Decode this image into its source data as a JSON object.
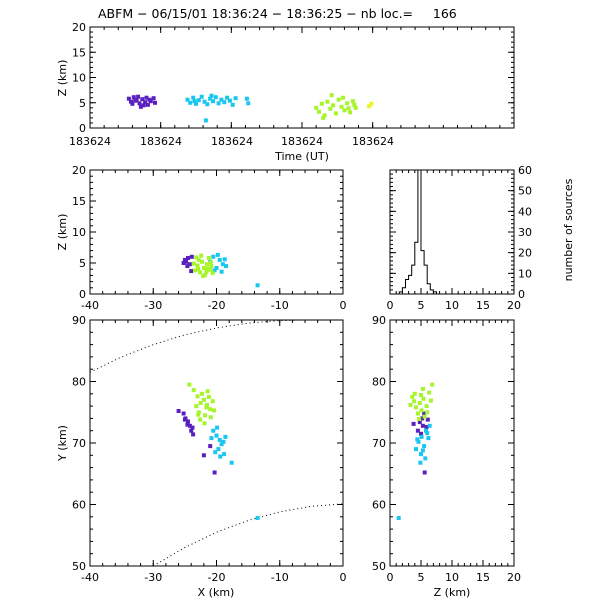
{
  "title": "ABFM − 06/15/01 18:36:24 − 18:36:25 − nb loc.=     166",
  "colors": {
    "background": "#ffffff",
    "frame": "#000000",
    "group_purple": "#5a1fbf",
    "group_blue": "#18c6f0",
    "group_green": "#a6f52a",
    "group_yellow": "#e8f520"
  },
  "chart_data": [
    {
      "type": "scatter",
      "panel": "time-height",
      "title": "ABFM − 06/15/01 18:36:24 − 18:36:25 − nb loc.=     166",
      "xlabel": "Time (UT)",
      "ylabel": "Z (km)",
      "x_tick_labels": [
        "183624",
        "183624",
        "183624",
        "183624",
        "183624"
      ],
      "ylim": [
        0,
        20
      ],
      "y_ticks": [
        0,
        5,
        10,
        15,
        20
      ],
      "series": [
        {
          "color": "#5a1fbf",
          "points": [
            [
              0.55,
              5.8
            ],
            [
              0.58,
              5.2
            ],
            [
              0.62,
              6.1
            ],
            [
              0.66,
              5.5
            ],
            [
              0.7,
              4.9
            ],
            [
              0.74,
              5.7
            ],
            [
              0.78,
              5.1
            ],
            [
              0.82,
              4.6
            ],
            [
              0.86,
              5.3
            ],
            [
              0.9,
              5.9
            ],
            [
              0.6,
              4.8
            ],
            [
              0.68,
              6.2
            ],
            [
              0.76,
              4.5
            ],
            [
              0.84,
              5.6
            ],
            [
              0.92,
              5.0
            ],
            [
              0.64,
              5.4
            ],
            [
              0.72,
              4.2
            ],
            [
              0.8,
              6.0
            ]
          ]
        },
        {
          "color": "#18c6f0",
          "points": [
            [
              1.38,
              5.6
            ],
            [
              1.42,
              5.0
            ],
            [
              1.46,
              6.0
            ],
            [
              1.5,
              4.8
            ],
            [
              1.54,
              5.5
            ],
            [
              1.58,
              6.2
            ],
            [
              1.62,
              5.2
            ],
            [
              1.66,
              4.7
            ],
            [
              1.7,
              5.8
            ],
            [
              1.74,
              5.3
            ],
            [
              1.78,
              6.1
            ],
            [
              1.82,
              4.9
            ],
            [
              1.86,
              5.6
            ],
            [
              1.9,
              5.1
            ],
            [
              1.94,
              6.0
            ],
            [
              1.98,
              5.4
            ],
            [
              2.02,
              4.6
            ],
            [
              2.06,
              5.9
            ],
            [
              1.64,
              1.5
            ],
            [
              2.22,
              5.8
            ],
            [
              2.24,
              4.9
            ],
            [
              1.48,
              5.3
            ],
            [
              1.72,
              6.4
            ]
          ]
        },
        {
          "color": "#a6f52a",
          "points": [
            [
              3.2,
              4.0
            ],
            [
              3.24,
              3.2
            ],
            [
              3.28,
              4.8
            ],
            [
              3.32,
              2.5
            ],
            [
              3.36,
              5.2
            ],
            [
              3.4,
              3.8
            ],
            [
              3.44,
              4.5
            ],
            [
              3.48,
              2.9
            ],
            [
              3.52,
              5.6
            ],
            [
              3.56,
              4.2
            ],
            [
              3.6,
              3.5
            ],
            [
              3.64,
              4.9
            ],
            [
              3.68,
              3.1
            ],
            [
              3.72,
              5.3
            ],
            [
              3.76,
              4.0
            ],
            [
              3.42,
              6.5
            ],
            [
              3.58,
              6.0
            ],
            [
              3.3,
              2.0
            ],
            [
              3.66,
              3.9
            ],
            [
              3.74,
              4.6
            ]
          ]
        },
        {
          "color": "#e8f520",
          "points": [
            [
              3.95,
              4.3
            ],
            [
              3.98,
              4.8
            ]
          ]
        }
      ]
    },
    {
      "type": "scatter",
      "panel": "x-z",
      "xlabel": "",
      "ylabel": "Z (km)",
      "xlim": [
        -40,
        0
      ],
      "x_ticks": [
        -40,
        -30,
        -20,
        -10,
        0
      ],
      "ylim": [
        0,
        20
      ],
      "y_ticks": [
        0,
        5,
        10,
        15,
        20
      ],
      "series": [
        {
          "color": "#5a1fbf",
          "points": [
            [
              -24.5,
              5.8
            ],
            [
              -24.8,
              5.2
            ],
            [
              -24.2,
              4.8
            ],
            [
              -25.0,
              5.5
            ],
            [
              -23.9,
              6.0
            ],
            [
              -24.6,
              4.5
            ],
            [
              -24.0,
              3.7
            ],
            [
              -25.2,
              5.0
            ]
          ]
        },
        {
          "color": "#18c6f0",
          "points": [
            [
              -20.5,
              6.0
            ],
            [
              -19.5,
              5.5
            ],
            [
              -19.0,
              4.8
            ],
            [
              -20.0,
              4.2
            ],
            [
              -18.7,
              5.6
            ],
            [
              -19.8,
              6.3
            ],
            [
              -20.3,
              3.8
            ],
            [
              -18.5,
              4.5
            ],
            [
              -21.0,
              5.2
            ],
            [
              -13.5,
              1.4
            ],
            [
              -19.2,
              3.6
            ]
          ]
        },
        {
          "color": "#a6f52a",
          "points": [
            [
              -22.0,
              4.2
            ],
            [
              -22.6,
              3.5
            ],
            [
              -21.5,
              4.8
            ],
            [
              -23.0,
              4.6
            ],
            [
              -21.0,
              3.9
            ],
            [
              -22.3,
              5.2
            ],
            [
              -21.8,
              3.1
            ],
            [
              -20.8,
              4.5
            ],
            [
              -23.4,
              3.8
            ],
            [
              -22.8,
              5.5
            ],
            [
              -21.2,
              5.8
            ],
            [
              -20.6,
              3.4
            ],
            [
              -22.1,
              2.9
            ],
            [
              -23.6,
              4.9
            ],
            [
              -21.4,
              4.1
            ],
            [
              -22.9,
              4.0
            ],
            [
              -20.9,
              5.1
            ],
            [
              -21.6,
              3.6
            ],
            [
              -23.2,
              5.9
            ],
            [
              -22.4,
              6.2
            ]
          ]
        }
      ]
    },
    {
      "type": "bar",
      "panel": "height-histogram",
      "xlabel": "",
      "ylabel": "number of sources",
      "xlim": [
        0,
        20
      ],
      "x_ticks": [
        0,
        5,
        10,
        15,
        20
      ],
      "ylim": [
        0,
        60
      ],
      "y_ticks": [
        0,
        10,
        20,
        30,
        40,
        50,
        60
      ],
      "bin_width": 0.5,
      "bins_start": [
        1.5,
        2.0,
        2.5,
        3.0,
        3.5,
        4.0,
        4.5,
        5.0,
        5.5,
        6.0,
        6.5,
        7.0
      ],
      "values": [
        1,
        3,
        7,
        9,
        14,
        25,
        60,
        21,
        14,
        5,
        2,
        1
      ]
    },
    {
      "type": "scatter",
      "panel": "x-y",
      "xlabel": "X (km)",
      "ylabel": "Y (km)",
      "xlim": [
        -40,
        0
      ],
      "x_ticks": [
        -40,
        -30,
        -20,
        -10,
        0
      ],
      "ylim": [
        50,
        90
      ],
      "y_ticks": [
        50,
        60,
        70,
        80,
        90
      ],
      "dotted_arcs": [
        {
          "points": [
            [
              -40,
              81.5
            ],
            [
              -35,
              84.0
            ],
            [
              -30,
              86.0
            ],
            [
              -25,
              87.6
            ],
            [
              -20,
              88.7
            ],
            [
              -15,
              89.5
            ],
            [
              -10,
              89.9
            ],
            [
              -6,
              90.0
            ]
          ]
        },
        {
          "points": [
            [
              -30,
              50.0
            ],
            [
              -25,
              53.0
            ],
            [
              -20,
              55.5
            ],
            [
              -15,
              57.4
            ],
            [
              -10,
              58.8
            ],
            [
              -5,
              59.7
            ],
            [
              0,
              60.1
            ]
          ]
        }
      ],
      "series": [
        {
          "color": "#5a1fbf",
          "points": [
            [
              -25.2,
              74.8
            ],
            [
              -24.9,
              74.0
            ],
            [
              -24.5,
              73.5
            ],
            [
              -24.2,
              72.8
            ],
            [
              -24.0,
              72.0
            ],
            [
              -23.7,
              71.4
            ],
            [
              -24.6,
              73.0
            ],
            [
              -25.0,
              73.8
            ],
            [
              -23.8,
              72.5
            ],
            [
              -26.0,
              75.2
            ],
            [
              -21.0,
              69.5
            ],
            [
              -20.3,
              65.2
            ],
            [
              -22.0,
              68.0
            ]
          ]
        },
        {
          "color": "#18c6f0",
          "points": [
            [
              -20.5,
              72.0
            ],
            [
              -20.0,
              71.2
            ],
            [
              -19.5,
              70.5
            ],
            [
              -19.2,
              69.8
            ],
            [
              -18.9,
              70.2
            ],
            [
              -19.7,
              69.0
            ],
            [
              -20.2,
              68.5
            ],
            [
              -18.6,
              71.0
            ],
            [
              -19.4,
              67.8
            ],
            [
              -20.8,
              70.8
            ],
            [
              -17.6,
              66.8
            ],
            [
              -18.8,
              68.2
            ],
            [
              -13.5,
              57.8
            ],
            [
              -19.9,
              72.5
            ]
          ]
        },
        {
          "color": "#a6f52a",
          "points": [
            [
              -22.5,
              76.5
            ],
            [
              -22.0,
              77.0
            ],
            [
              -21.5,
              76.2
            ],
            [
              -21.0,
              75.5
            ],
            [
              -22.8,
              75.0
            ],
            [
              -21.8,
              74.5
            ],
            [
              -20.6,
              76.8
            ],
            [
              -23.2,
              76.0
            ],
            [
              -22.3,
              78.0
            ],
            [
              -21.2,
              77.5
            ],
            [
              -20.9,
              74.2
            ],
            [
              -22.6,
              73.8
            ],
            [
              -24.3,
              79.5
            ],
            [
              -23.6,
              78.6
            ],
            [
              -21.6,
              75.8
            ],
            [
              -20.4,
              75.3
            ],
            [
              -22.9,
              74.6
            ],
            [
              -21.9,
              73.2
            ],
            [
              -23.0,
              77.6
            ],
            [
              -21.4,
              78.4
            ]
          ]
        }
      ]
    },
    {
      "type": "scatter",
      "panel": "z-y",
      "xlabel": "Z (km)",
      "ylabel": "",
      "xlim": [
        0,
        20
      ],
      "x_ticks": [
        0,
        5,
        10,
        15,
        20
      ],
      "ylim": [
        50,
        90
      ],
      "y_ticks": [
        50,
        60,
        70,
        80,
        90
      ],
      "series": [
        {
          "color": "#5a1fbf",
          "points": [
            [
              5.5,
              74.8
            ],
            [
              5.2,
              74.0
            ],
            [
              4.8,
              73.4
            ],
            [
              5.9,
              72.6
            ],
            [
              4.5,
              72.0
            ],
            [
              6.1,
              73.8
            ],
            [
              3.8,
              73.1
            ],
            [
              5.0,
              71.5
            ],
            [
              5.6,
              65.2
            ],
            [
              5.3,
              72.8
            ]
          ]
        },
        {
          "color": "#18c6f0",
          "points": [
            [
              5.8,
              72.0
            ],
            [
              5.1,
              71.0
            ],
            [
              4.6,
              70.2
            ],
            [
              5.5,
              69.5
            ],
            [
              6.2,
              70.8
            ],
            [
              4.2,
              69.0
            ],
            [
              5.0,
              68.2
            ],
            [
              5.7,
              67.5
            ],
            [
              4.9,
              66.8
            ],
            [
              6.0,
              71.6
            ],
            [
              4.4,
              70.6
            ],
            [
              5.3,
              68.8
            ],
            [
              1.4,
              57.8
            ],
            [
              6.4,
              72.8
            ]
          ]
        },
        {
          "color": "#a6f52a",
          "points": [
            [
              4.8,
              76.5
            ],
            [
              5.4,
              77.2
            ],
            [
              4.2,
              75.8
            ],
            [
              5.9,
              76.0
            ],
            [
              3.6,
              77.5
            ],
            [
              6.3,
              78.2
            ],
            [
              4.5,
              74.8
            ],
            [
              5.1,
              75.3
            ],
            [
              3.9,
              76.8
            ],
            [
              6.8,
              79.5
            ],
            [
              5.6,
              74.3
            ],
            [
              4.0,
              78.0
            ],
            [
              6.0,
              75.0
            ],
            [
              4.7,
              73.9
            ],
            [
              5.3,
              78.8
            ],
            [
              3.3,
              76.2
            ],
            [
              6.6,
              76.9
            ],
            [
              5.0,
              77.8
            ]
          ]
        }
      ]
    }
  ]
}
